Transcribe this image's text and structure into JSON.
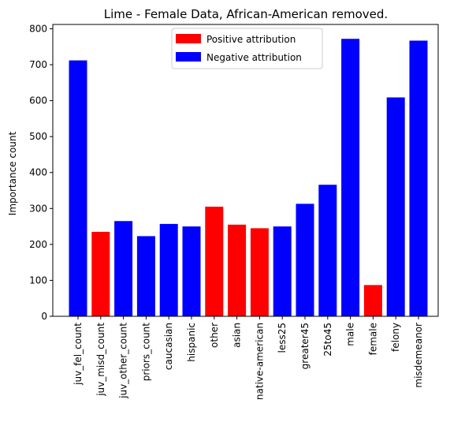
{
  "chart_data": {
    "type": "bar",
    "title": "Lime - Female Data, African-American removed.",
    "xlabel": "",
    "ylabel": "Importance count",
    "ylim": [
      0,
      812
    ],
    "yticks": [
      0,
      100,
      200,
      300,
      400,
      500,
      600,
      700,
      800
    ],
    "categories": [
      "juv_fel_count",
      "juv_misd_count",
      "juv_other_count",
      "priors_count",
      "caucasian",
      "hispanic",
      "other",
      "asian",
      "native-american",
      "less25",
      "greater45",
      "25to45",
      "male",
      "female",
      "felony",
      "misdemeanor"
    ],
    "values": [
      712,
      235,
      265,
      223,
      257,
      250,
      305,
      255,
      245,
      250,
      313,
      366,
      772,
      87,
      609,
      767
    ],
    "attribution": [
      "negative",
      "positive",
      "negative",
      "negative",
      "negative",
      "negative",
      "positive",
      "positive",
      "positive",
      "negative",
      "negative",
      "negative",
      "negative",
      "positive",
      "negative",
      "negative"
    ],
    "legend": {
      "placement": "top-center",
      "entries": [
        {
          "key": "positive",
          "label": "Positive attribution",
          "color": "#ff0000"
        },
        {
          "key": "negative",
          "label": "Negative attribution",
          "color": "#0000ff"
        }
      ]
    },
    "grid": false
  }
}
